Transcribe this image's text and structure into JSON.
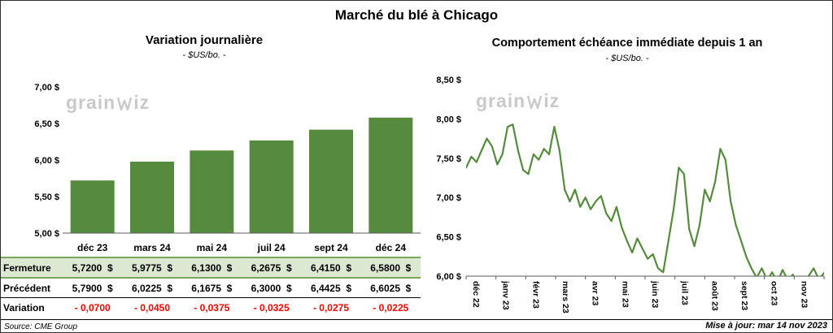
{
  "page": {
    "title": "Marché du blé à Chicago"
  },
  "footer": {
    "source": "Source: CME Group",
    "updated": "Mise à jour: mar 14 nov 2023"
  },
  "watermark": {
    "text_pre": "grain",
    "text_post": "iz"
  },
  "colors": {
    "green": "#568b3f",
    "close_row_bg": "#dce8d2",
    "close_row_border": "#7aa55b",
    "variation_red": "#ff0000",
    "axis_gray": "#595959",
    "watermark_gray": "#c9c9c9"
  },
  "chart_data": [
    {
      "id": "daily_variation",
      "type": "bar",
      "title": "Variation journalière",
      "subtitle": "- $US/bo. -",
      "categories": [
        "déc 23",
        "mars 24",
        "mai 24",
        "juil 24",
        "sept 24",
        "déc 24"
      ],
      "values": [
        5.72,
        5.9775,
        6.13,
        6.2675,
        6.415,
        6.58
      ],
      "ylim": [
        5.0,
        7.0
      ],
      "ytick_step": 0.5,
      "ytick_labels": [
        "5,00 $",
        "5,50 $",
        "6,00 $",
        "6,50 $",
        "7,00 $"
      ],
      "grid": false,
      "legend": "none"
    },
    {
      "id": "front_month_one_year",
      "type": "line",
      "title": "Comportement échéance immédiate depuis 1 an",
      "subtitle": "- $US/bo. -",
      "x_tick_labels": [
        "déc 22",
        "janv 23",
        "févr 23",
        "mars 23",
        "avr 23",
        "mai 23",
        "juin 23",
        "juil 23",
        "août 23",
        "sept 23",
        "oct 23",
        "nov 23"
      ],
      "ylim": [
        6.0,
        8.5
      ],
      "ytick_step": 0.5,
      "ytick_labels": [
        "6,00 $",
        "6,50 $",
        "7,00 $",
        "7,50 $",
        "8,00 $",
        "8,50 $"
      ],
      "grid": false,
      "legend": "none",
      "values": [
        7.38,
        7.52,
        7.45,
        7.6,
        7.75,
        7.65,
        7.42,
        7.55,
        7.9,
        7.93,
        7.6,
        7.35,
        7.3,
        7.55,
        7.48,
        7.62,
        7.55,
        7.9,
        7.6,
        7.1,
        6.95,
        7.1,
        6.88,
        7.0,
        6.85,
        6.95,
        7.02,
        6.8,
        6.7,
        6.88,
        6.62,
        6.45,
        6.3,
        6.48,
        6.35,
        6.22,
        6.28,
        6.1,
        6.05,
        6.45,
        6.85,
        7.38,
        7.3,
        6.6,
        6.38,
        6.65,
        7.1,
        6.95,
        7.2,
        7.62,
        7.48,
        6.95,
        6.65,
        6.45,
        6.25,
        6.1,
        5.98,
        6.1,
        5.95,
        6.05,
        5.92,
        6.08,
        5.95,
        6.02,
        5.9,
        5.97,
        6.0,
        6.1,
        5.96,
        6.04
      ]
    }
  ],
  "price_table": {
    "rows": [
      {
        "label": "Fermeture",
        "style": "close",
        "suffix": "$",
        "values": [
          "5,7200",
          "5,9775",
          "6,1300",
          "6,2675",
          "6,4150",
          "6,5800"
        ]
      },
      {
        "label": "Précédent",
        "style": "previous",
        "suffix": "$",
        "values": [
          "5,7900",
          "6,0225",
          "6,1675",
          "6,3000",
          "6,4425",
          "6,6025"
        ]
      },
      {
        "label": "Variation",
        "style": "variation",
        "suffix": "",
        "values": [
          "- 0,0700",
          "- 0,0450",
          "- 0,0375",
          "- 0,0325",
          "- 0,0275",
          "- 0,0225"
        ]
      }
    ]
  }
}
